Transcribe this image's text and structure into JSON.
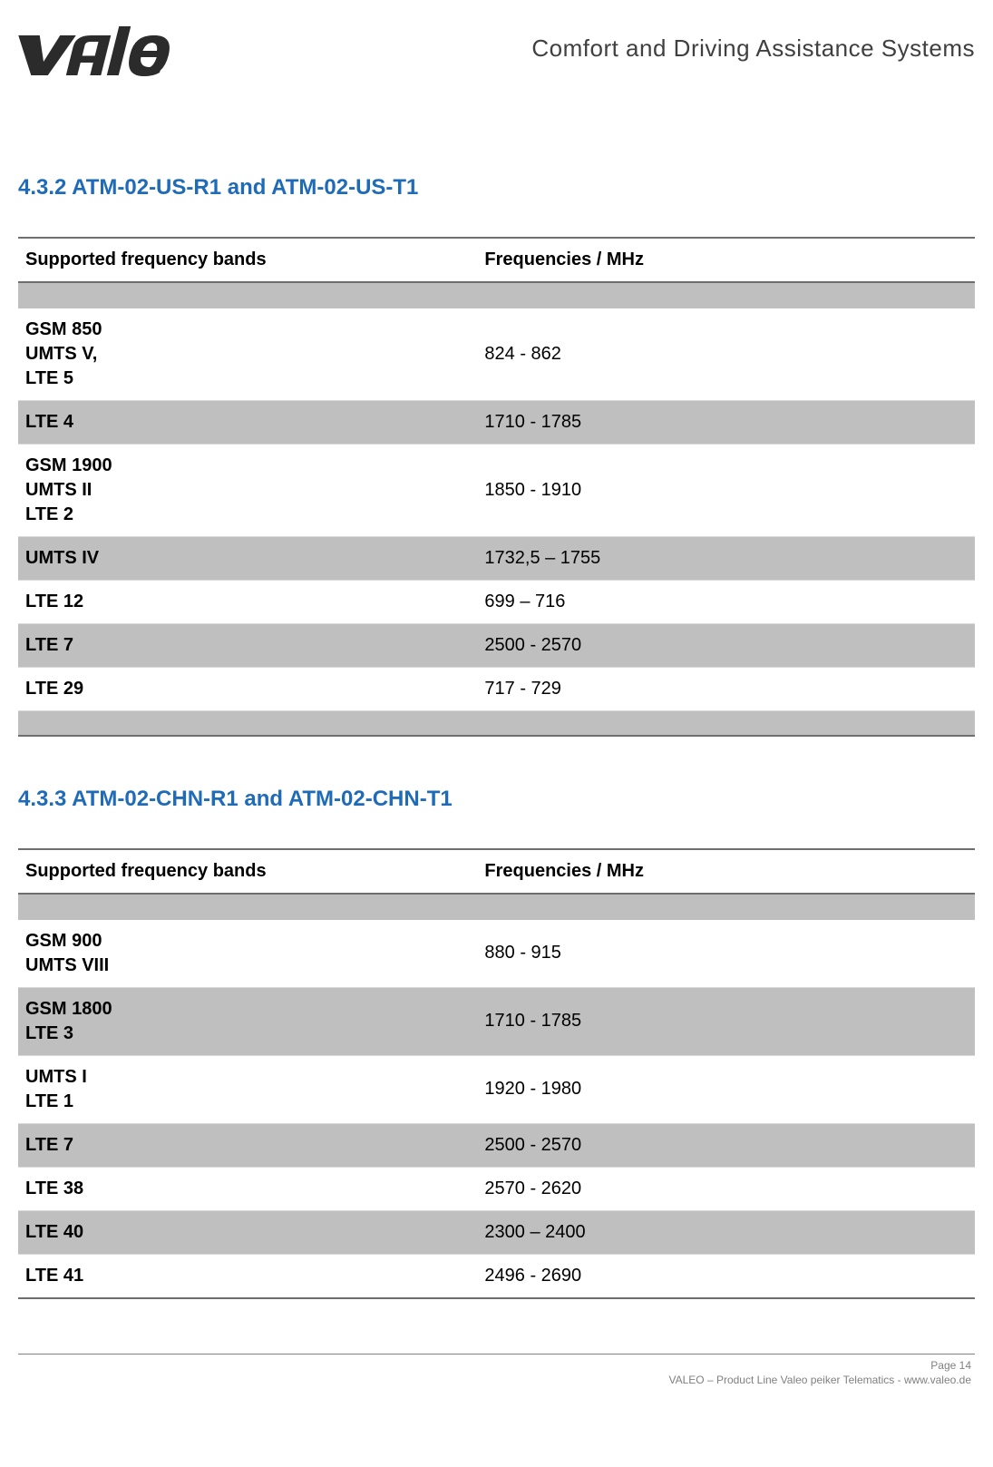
{
  "header": {
    "logo_text": "Valeo",
    "tagline": "Comfort and Driving Assistance Systems"
  },
  "colors": {
    "heading": "#1f6bb8",
    "shaded_row": "#bfbfbf",
    "rule": "#6e6e6e",
    "text": "#000000",
    "footer_text": "#808080"
  },
  "sections": [
    {
      "number": "4.3.2",
      "title": "ATM-02-US-R1 and ATM-02-US-T1",
      "columns": [
        "Supported frequency bands",
        "Frequencies / MHz"
      ],
      "rows": [
        {
          "band": "GSM 850\nUMTS  V,\nLTE 5",
          "freq": "824 - 862",
          "shaded": false
        },
        {
          "band": "LTE 4",
          "freq": "1710 - 1785",
          "shaded": true
        },
        {
          "band": "GSM 1900\nUMTS II\nLTE 2",
          "freq": "1850 - 1910",
          "shaded": false
        },
        {
          "band": "UMTS IV",
          "freq": "1732,5 – 1755",
          "shaded": true
        },
        {
          "band": "LTE 12",
          "freq": "699 – 716",
          "shaded": false
        },
        {
          "band": "LTE 7",
          "freq": "2500 - 2570",
          "shaded": true
        },
        {
          "band": "LTE 29",
          "freq": "717 - 729",
          "shaded": false
        }
      ],
      "trailing_spacer": true
    },
    {
      "number": "4.3.3",
      "title": "ATM-02-CHN-R1 and ATM-02-CHN-T1",
      "columns": [
        "Supported frequency bands",
        "Frequencies / MHz"
      ],
      "rows": [
        {
          "band": "GSM 900\nUMTS VIII",
          "freq": "880 - 915",
          "shaded": false
        },
        {
          "band": "GSM 1800\nLTE 3",
          "freq": "1710 - 1785",
          "shaded": true
        },
        {
          "band": "UMTS I\nLTE 1",
          "freq": "1920 - 1980",
          "shaded": false
        },
        {
          "band": "LTE 7",
          "freq": "2500 - 2570",
          "shaded": true
        },
        {
          "band": "LTE 38",
          "freq": "2570 - 2620",
          "shaded": false
        },
        {
          "band": "LTE 40",
          "freq": "2300 – 2400",
          "shaded": true
        },
        {
          "band": "LTE 41",
          "freq": "2496 - 2690",
          "shaded": false
        }
      ],
      "trailing_spacer": false
    }
  ],
  "footer": {
    "page_label": "Page 14",
    "line2": "VALEO – Product Line Valeo peiker Telematics - www.valeo.de"
  }
}
